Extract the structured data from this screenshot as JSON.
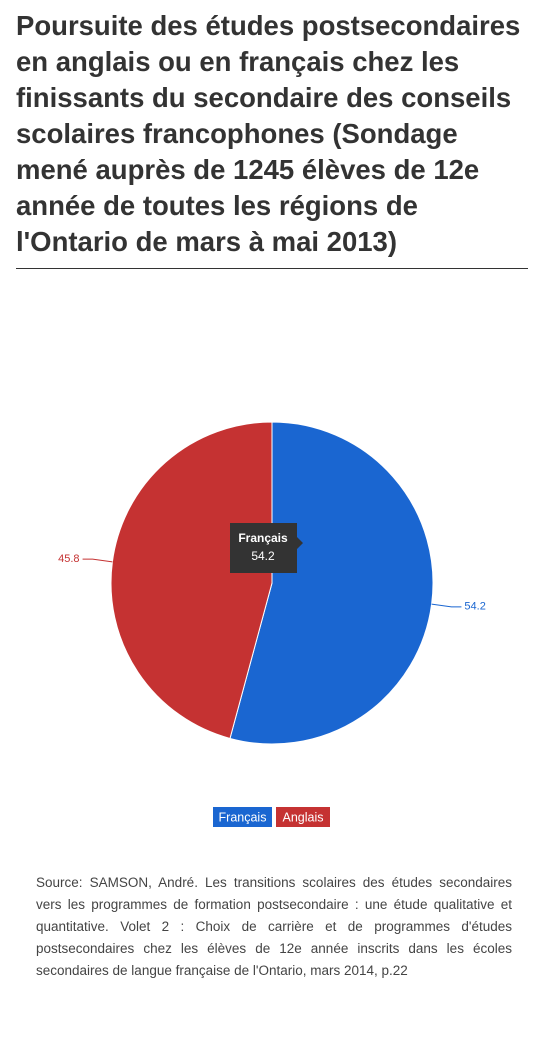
{
  "chart_data": {
    "type": "pie",
    "title": "Poursuite des études postsecondaires en anglais ou en français chez les finissants du secondaire des conseils scolaires francophones (Sondage mené auprès de 1245 élèves de 12e année de toutes les régions de l'Ontario de mars à mai 2013)",
    "categories": [
      "Français",
      "Anglais"
    ],
    "values": [
      54.2,
      45.8
    ],
    "colors": [
      "#1a66d1",
      "#c53232"
    ],
    "source": "Source: SAMSON, André. Les transitions scolaires des études secondaires vers les programmes de formation postsecondaire : une étude qualitative et quantitative. Volet 2 : Choix de carrière et de programmes d'études postsecondaires chez les élèves de 12e année inscrits dans les écoles secondaires de langue française de l'Ontario, mars 2014, p.22"
  }
}
